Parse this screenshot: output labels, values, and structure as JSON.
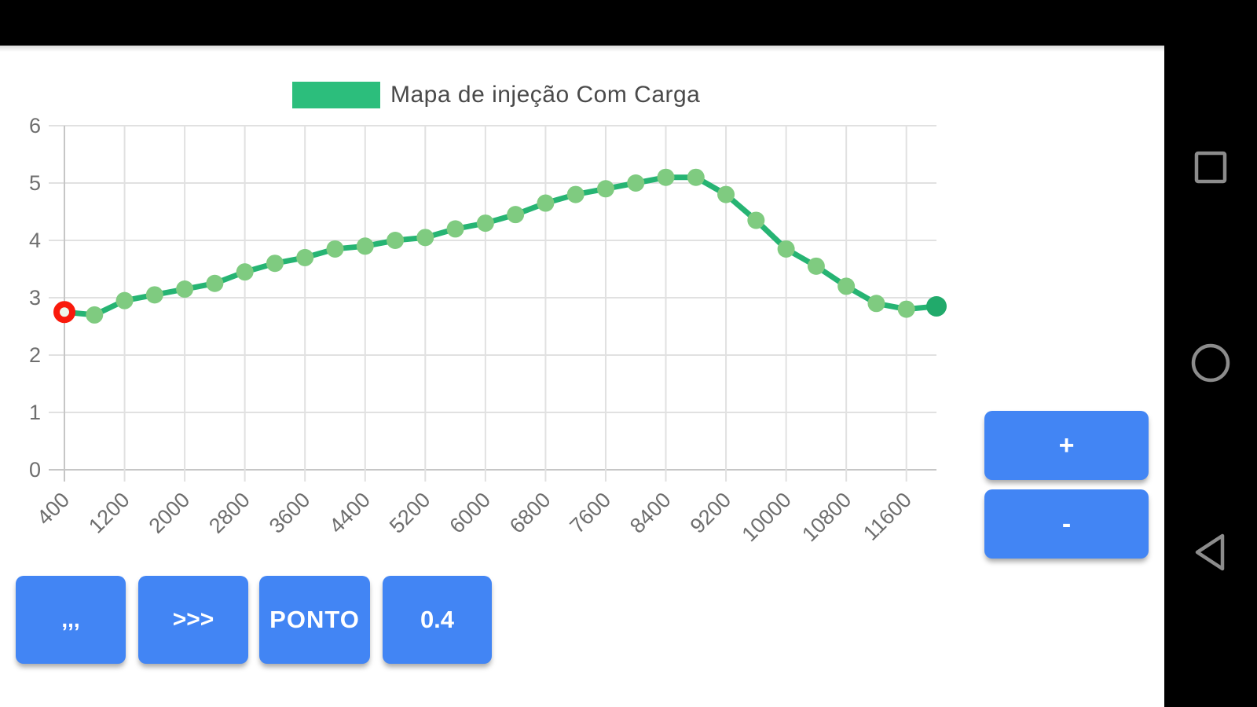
{
  "chart_data": {
    "type": "line",
    "title": "Mapa de injeção Com Carga",
    "xlabel": "",
    "ylabel": "",
    "x": [
      400,
      800,
      1200,
      1600,
      2000,
      2400,
      2800,
      3200,
      3600,
      4000,
      4400,
      4800,
      5200,
      5600,
      6000,
      6400,
      6800,
      7200,
      7600,
      8000,
      8400,
      8800,
      9200,
      9600,
      10000,
      10400,
      10800,
      11200,
      11600,
      12000
    ],
    "values": [
      2.75,
      2.7,
      2.95,
      3.05,
      3.15,
      3.25,
      3.45,
      3.6,
      3.7,
      3.85,
      3.9,
      4.0,
      4.05,
      4.2,
      4.3,
      4.45,
      4.65,
      4.8,
      4.9,
      5.0,
      5.1,
      5.1,
      4.8,
      4.35,
      3.85,
      3.55,
      3.2,
      2.9,
      2.8,
      2.85
    ],
    "x_tick_labels": [
      "400",
      "1200",
      "2000",
      "2800",
      "3600",
      "4400",
      "5200",
      "6000",
      "6800",
      "7600",
      "8400",
      "9200",
      "10000",
      "10800",
      "11600"
    ],
    "y_ticks": [
      0,
      1,
      2,
      3,
      4,
      5,
      6
    ],
    "xlim": [
      400,
      12000
    ],
    "ylim": [
      0,
      6
    ],
    "grid": true,
    "legend_position": "top",
    "selected_index": 0,
    "selected_point": {
      "x": 400,
      "y": 2.75
    },
    "colors": {
      "line": "#26B473",
      "last_point": "#21AA6B",
      "point": "#7FCB80",
      "legend_swatch": "#2CBE7C",
      "selected_ring": "#F9190B",
      "selected_fill": "#EDF7EC",
      "grid": "#E1E1E1",
      "axis": "#C6C6C6",
      "tick_text": "#6E6E6E"
    }
  },
  "controls": {
    "button_color": "#4285F4",
    "increase_label": "+",
    "decrease_label": "-",
    "menu_label": ",,,",
    "forward_label": ">>>",
    "point_label": "PONTO",
    "value_label": "0.4"
  },
  "navbar": {
    "icons": [
      "recents-square-icon",
      "home-circle-icon",
      "back-triangle-icon"
    ],
    "icon_color": "#8C8C8C"
  }
}
